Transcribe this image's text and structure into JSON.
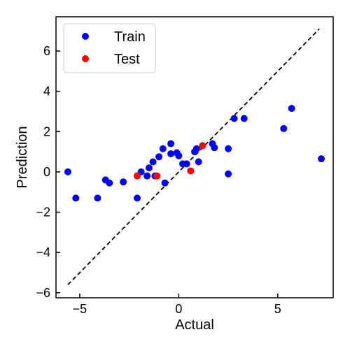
{
  "chart_data": {
    "type": "scatter",
    "xlabel": "Actual",
    "ylabel": "Prediction",
    "xlim": [
      -6.2,
      7.8
    ],
    "ylim": [
      -6.25,
      7.7
    ],
    "xticks": [
      -5,
      0,
      5
    ],
    "yticks": [
      -6,
      -4,
      -2,
      0,
      2,
      4,
      6
    ],
    "grid": false,
    "legend_position": "top-left",
    "reference_line": {
      "style": "dashed",
      "color": "#000000",
      "x": [
        -5.6,
        7.1
      ],
      "y": [
        -5.6,
        7.1
      ]
    },
    "series": [
      {
        "name": "Train",
        "color": "#0000ff",
        "points": [
          {
            "x": -5.6,
            "y": 0.0
          },
          {
            "x": -5.2,
            "y": -1.3
          },
          {
            "x": -4.1,
            "y": -1.3
          },
          {
            "x": -3.7,
            "y": -0.4
          },
          {
            "x": -3.5,
            "y": -0.55
          },
          {
            "x": -2.8,
            "y": -0.5
          },
          {
            "x": -2.1,
            "y": -1.3
          },
          {
            "x": -1.9,
            "y": 0.0
          },
          {
            "x": -1.6,
            "y": -0.2
          },
          {
            "x": -1.5,
            "y": 0.2
          },
          {
            "x": -1.3,
            "y": 0.5
          },
          {
            "x": -1.2,
            "y": -0.2
          },
          {
            "x": -1.0,
            "y": 0.75
          },
          {
            "x": -0.8,
            "y": 1.15
          },
          {
            "x": -0.7,
            "y": -0.55
          },
          {
            "x": -0.4,
            "y": 1.4
          },
          {
            "x": -0.4,
            "y": 0.9
          },
          {
            "x": -0.1,
            "y": 0.95
          },
          {
            "x": 0.0,
            "y": 0.8
          },
          {
            "x": 0.2,
            "y": 0.4
          },
          {
            "x": 0.4,
            "y": 0.4
          },
          {
            "x": 0.8,
            "y": 1.0
          },
          {
            "x": 0.9,
            "y": 1.15
          },
          {
            "x": 1.0,
            "y": 0.5
          },
          {
            "x": 1.7,
            "y": 1.4
          },
          {
            "x": 1.8,
            "y": 1.2
          },
          {
            "x": 2.5,
            "y": -0.1
          },
          {
            "x": 2.5,
            "y": 1.15
          },
          {
            "x": 2.8,
            "y": 2.65
          },
          {
            "x": 3.3,
            "y": 2.65
          },
          {
            "x": 5.3,
            "y": 2.15
          },
          {
            "x": 5.7,
            "y": 3.15
          },
          {
            "x": 7.2,
            "y": 0.65
          }
        ]
      },
      {
        "name": "Test",
        "color": "#ff0000",
        "points": [
          {
            "x": -2.1,
            "y": -0.2
          },
          {
            "x": -1.1,
            "y": -0.2
          },
          {
            "x": 0.6,
            "y": 0.05
          },
          {
            "x": 1.2,
            "y": 1.3
          }
        ]
      }
    ]
  }
}
